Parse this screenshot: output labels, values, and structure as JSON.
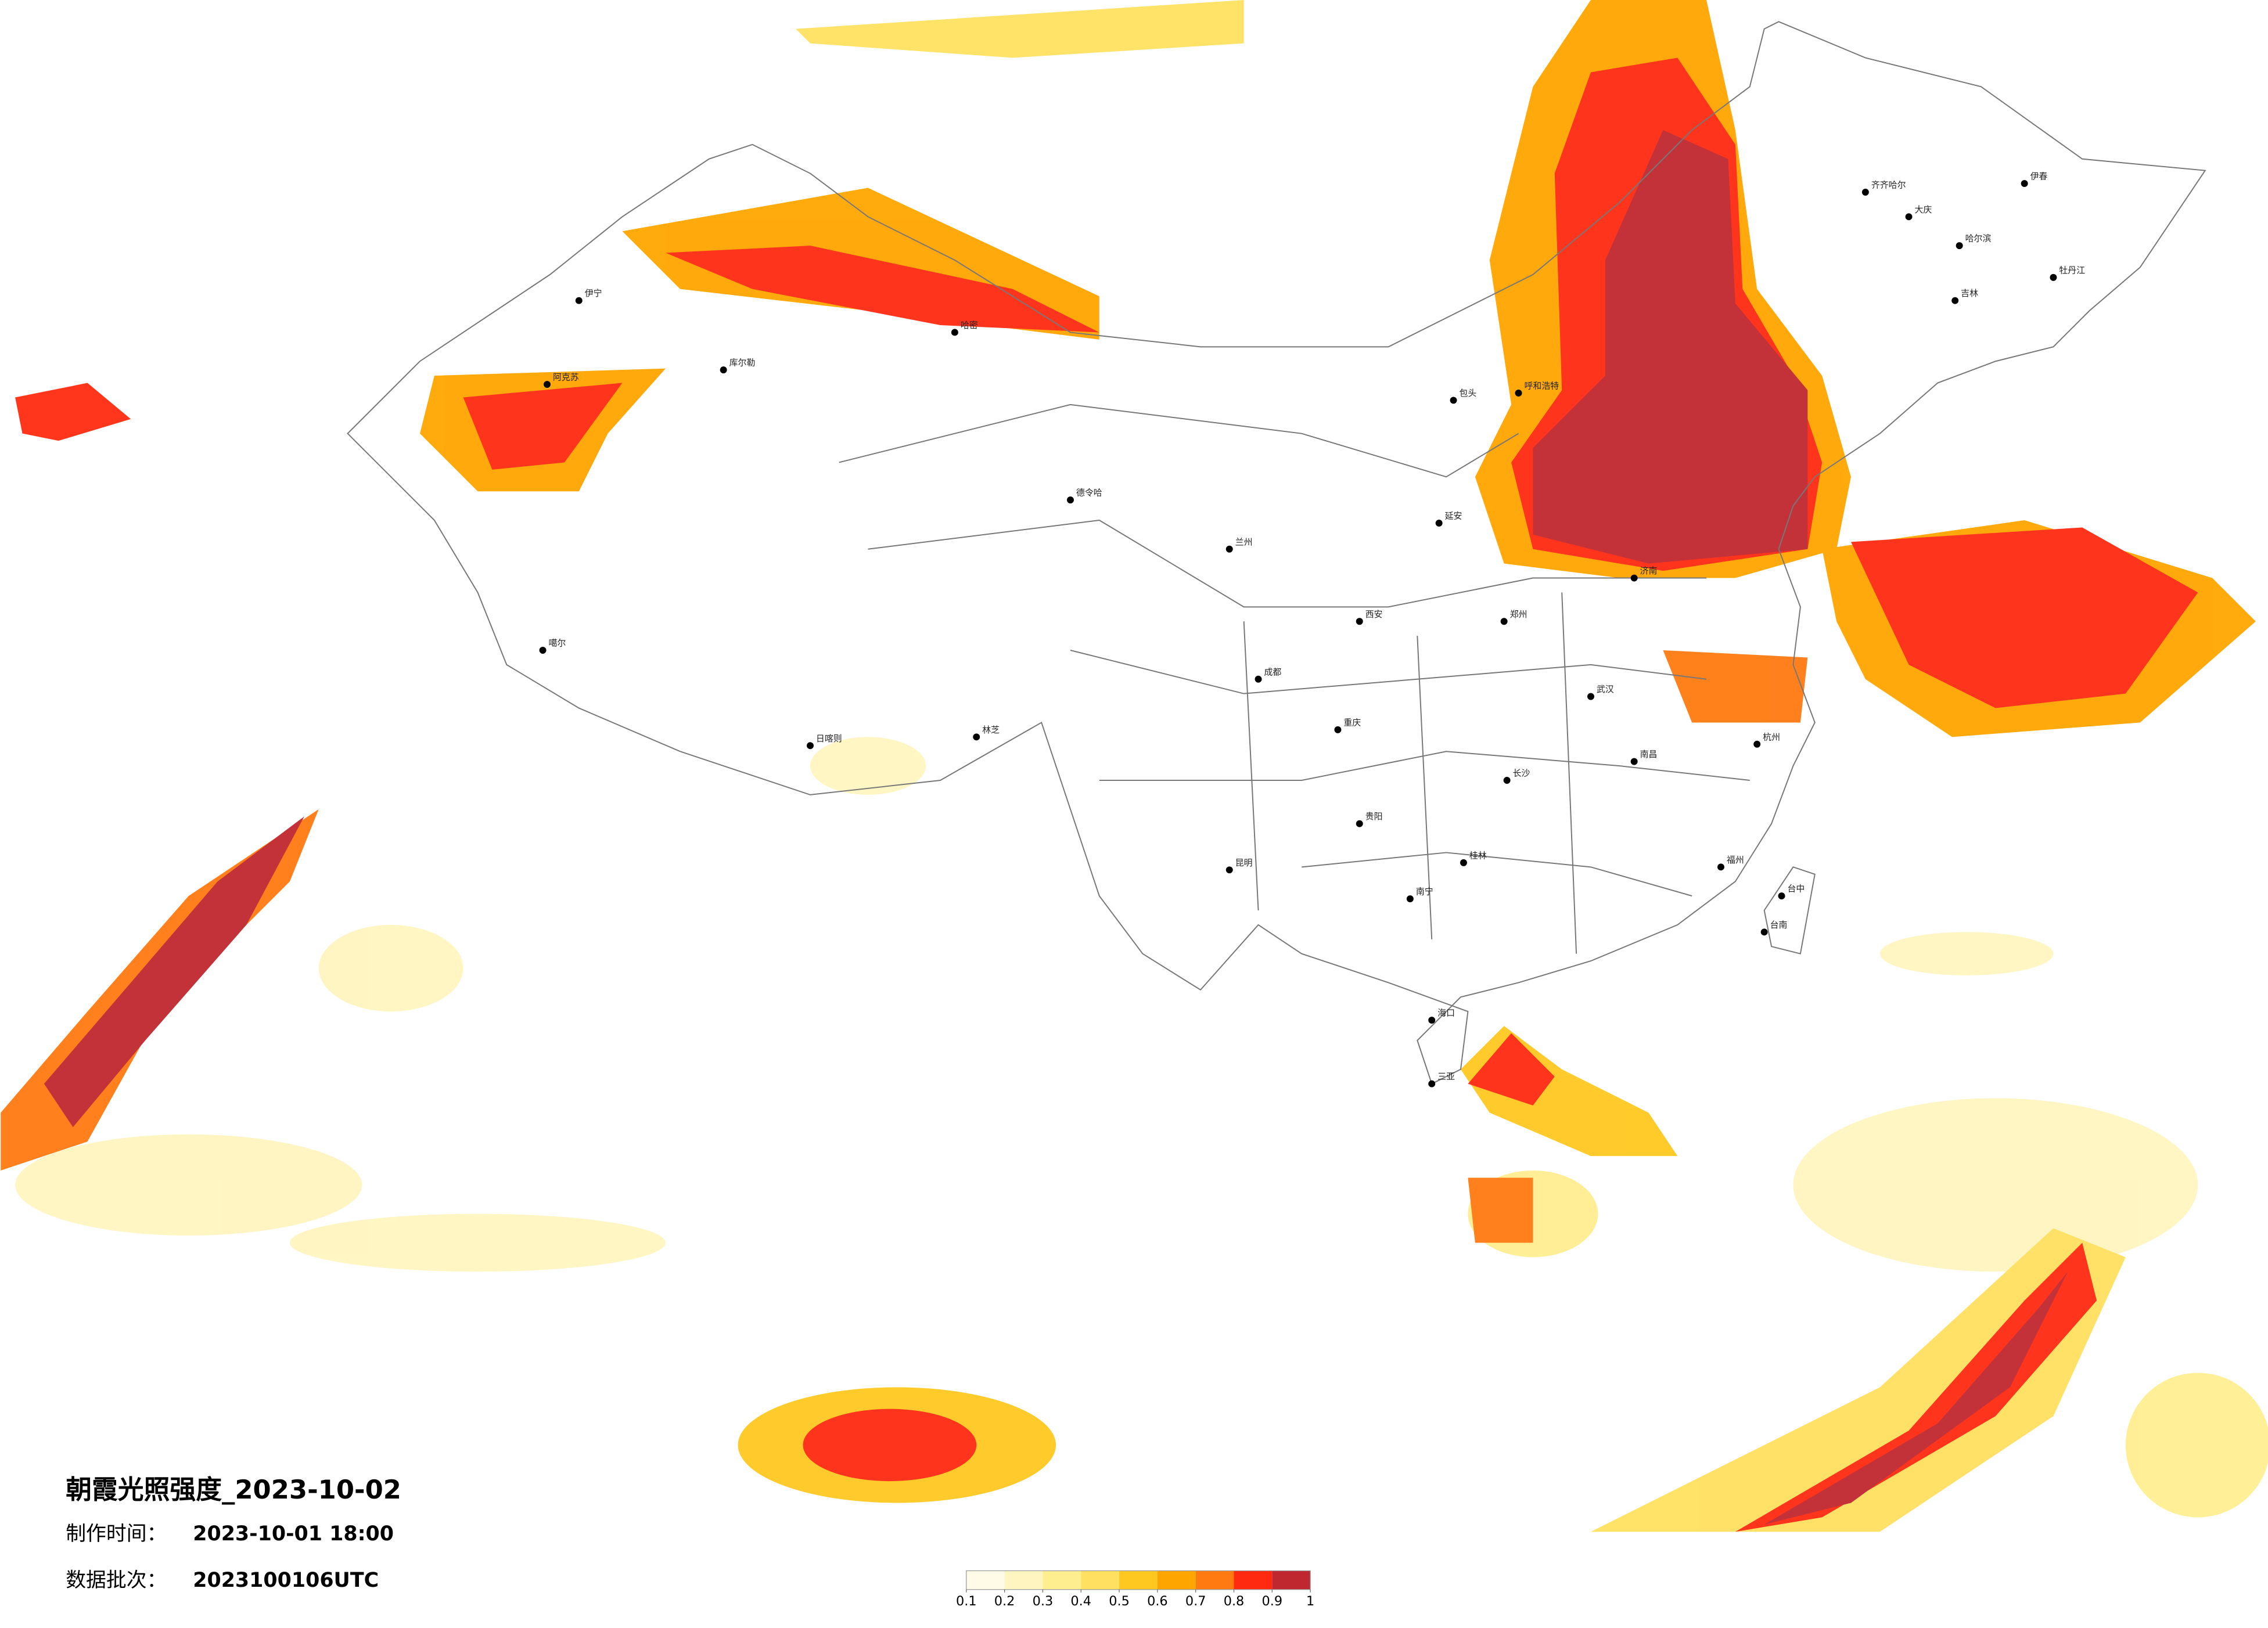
{
  "header": {
    "title": "朝霞光照强度_2023-10-02",
    "made_label": "制作时间：",
    "made_time": "2023-10-01 18:00",
    "batch_label": "数据批次：",
    "batch": "2023100106UTC"
  },
  "legend": {
    "colors": [
      "#fffbe6",
      "#fff5c0",
      "#ffee90",
      "#ffe060",
      "#ffc820",
      "#ffa500",
      "#ff7a10",
      "#ff2a10",
      "#c0282f"
    ],
    "ticks": [
      0.1,
      0.2,
      0.3,
      0.4,
      0.5,
      0.6,
      0.7,
      0.8,
      0.9,
      1
    ]
  },
  "cities": [
    "齐齐哈尔",
    "大庆",
    "哈尔滨",
    "牡丹江",
    "伊春",
    "吉林",
    "呼和浩特",
    "包头",
    "德令哈",
    "日喀则",
    "林芝",
    "伊宁",
    "哈密",
    "库尔勒",
    "阿克苏",
    "噶尔",
    "延安",
    "长沙",
    "桂林",
    "南宁",
    "海口",
    "三亚",
    "福州",
    "台中",
    "台南",
    "杭州",
    "南昌",
    "武汉",
    "昆明",
    "贵阳",
    "重庆",
    "成都",
    "济南",
    "郑州",
    "西安",
    "兰州"
  ]
}
